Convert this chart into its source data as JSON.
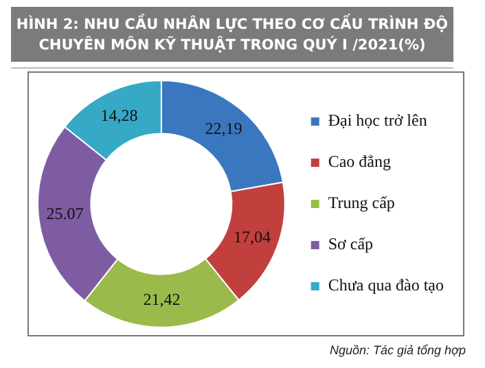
{
  "chart_data": {
    "type": "donut",
    "title": "HÌNH 2: NHU CẦU NHÂN LỰC THEO CƠ CẤU TRÌNH ĐỘ CHUYÊN MÔN KỸ THUẬT TRONG QUÝ I /2021(%)",
    "categories": [
      "Đại học trở lên",
      "Cao đẳng",
      "Trung cấp",
      "Sơ cấp",
      "Chưa qua đào tạo"
    ],
    "values": [
      22.19,
      17.04,
      21.42,
      25.07,
      14.28
    ],
    "value_labels": [
      "22,19",
      "17,04",
      "21,42",
      "25.07",
      "14,28"
    ],
    "colors": [
      "#3b77bf",
      "#c1403d",
      "#9abb4b",
      "#7e5ca2",
      "#35a9c6"
    ],
    "legend": "right",
    "annotations": [
      "Nguồn: Tác giả tổng hợp"
    ]
  }
}
